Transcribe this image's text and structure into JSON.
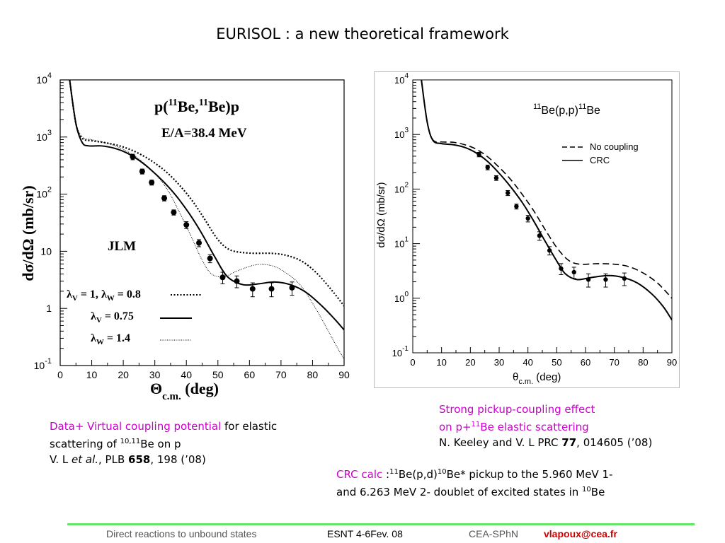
{
  "slide": {
    "title": "EURISOL : a new theoretical framework"
  },
  "chart_data": [
    {
      "type": "line",
      "title": "p(11Be,11Be)p",
      "title_parts": {
        "p_open": "p(",
        "mass1": "11",
        "be1": "Be,",
        "mass2": "11",
        "be2": "Be)p"
      },
      "subtitle": "E/A=38.4 MeV",
      "annotation": "JLM",
      "xlabel": "Θc.m. (deg)",
      "xlabel_parts": {
        "sym": "Θ",
        "sub": "c.m.",
        "rest": " (deg)"
      },
      "ylabel": "dσ/dΩ (mb/sr)",
      "xlim": [
        0,
        90
      ],
      "ylim": [
        0.1,
        10000
      ],
      "yscale": "log",
      "grid": false,
      "x_ticks": [
        "0",
        "10",
        "20",
        "30",
        "40",
        "50",
        "60",
        "70",
        "80",
        "90"
      ],
      "y_ticks": [
        {
          "base": "10",
          "exp": "4"
        },
        {
          "base": "10",
          "exp": "3"
        },
        {
          "base": "10",
          "exp": "2"
        },
        {
          "base": "10",
          "exp": ""
        },
        {
          "base": "1",
          "exp": ""
        },
        {
          "base": "10",
          "exp": "-1"
        }
      ],
      "legend": [
        {
          "lam1": "λ",
          "sub1": "V",
          "mid": " = 1, ",
          "lam2": "λ",
          "sub2": "W",
          "end": " = 0.8",
          "style": "dotted-bold"
        },
        {
          "lam1": "λ",
          "sub1": "V",
          "mid": " = 0.75",
          "style": "solid"
        },
        {
          "lam1": "λ",
          "sub1": "W",
          "mid": " = 1.4",
          "style": "dotted-thin"
        }
      ],
      "series": [
        {
          "style": "solid",
          "points": [
            [
              3,
              10000
            ],
            [
              5,
              1700
            ],
            [
              7,
              800
            ],
            [
              9,
              700
            ],
            [
              13,
              700
            ],
            [
              17,
              640
            ],
            [
              21,
              530
            ],
            [
              25,
              390
            ],
            [
              29,
              260
            ],
            [
              33,
              160
            ],
            [
              37,
              90
            ],
            [
              41,
              45
            ],
            [
              45,
              20
            ],
            [
              49,
              8
            ],
            [
              53,
              3.6
            ],
            [
              58,
              2.6
            ],
            [
              63,
              2.7
            ],
            [
              68,
              2.9
            ],
            [
              73,
              2.6
            ],
            [
              78,
              1.9
            ],
            [
              83,
              1.1
            ],
            [
              87,
              0.65
            ],
            [
              90,
              0.42
            ]
          ]
        },
        {
          "style": "dotted-bold",
          "points": [
            [
              3,
              10000
            ],
            [
              5,
              1700
            ],
            [
              7,
              950
            ],
            [
              10,
              860
            ],
            [
              14,
              800
            ],
            [
              18,
              720
            ],
            [
              22,
              610
            ],
            [
              26,
              480
            ],
            [
              30,
              350
            ],
            [
              34,
              235
            ],
            [
              38,
              140
            ],
            [
              42,
              75
            ],
            [
              46,
              35
            ],
            [
              50,
              16
            ],
            [
              54,
              10.5
            ],
            [
              60,
              9.3
            ],
            [
              67,
              9.2
            ],
            [
              72,
              8.4
            ],
            [
              77,
              6.5
            ],
            [
              82,
              3.8
            ],
            [
              87,
              1.8
            ],
            [
              90,
              1.1
            ]
          ]
        },
        {
          "style": "dotted-thin",
          "points": [
            [
              3,
              10000
            ],
            [
              5,
              1800
            ],
            [
              7,
              1000
            ],
            [
              10,
              900
            ],
            [
              14,
              800
            ],
            [
              18,
              680
            ],
            [
              22,
              530
            ],
            [
              26,
              370
            ],
            [
              30,
              230
            ],
            [
              34,
              120
            ],
            [
              38,
              46
            ],
            [
              42,
              16
            ],
            [
              45,
              7
            ],
            [
              48,
              4
            ],
            [
              52,
              3.6
            ],
            [
              56,
              4.5
            ],
            [
              62,
              5.8
            ],
            [
              67,
              5.6
            ],
            [
              71,
              4.4
            ],
            [
              76,
              2.6
            ],
            [
              81,
              1.0
            ],
            [
              85,
              0.4
            ],
            [
              88,
              0.2
            ],
            [
              90,
              0.13
            ]
          ]
        }
      ],
      "data_points": [
        {
          "x": 23,
          "y": 450,
          "err": 50
        },
        {
          "x": 26,
          "y": 250,
          "err": 25
        },
        {
          "x": 29,
          "y": 160,
          "err": 16
        },
        {
          "x": 33,
          "y": 85,
          "err": 9
        },
        {
          "x": 36,
          "y": 48,
          "err": 5
        },
        {
          "x": 40,
          "y": 29,
          "err": 4
        },
        {
          "x": 44,
          "y": 14,
          "err": 2
        },
        {
          "x": 47.5,
          "y": 7.5,
          "err": 1.2
        },
        {
          "x": 51.5,
          "y": 3.5,
          "err": 0.8
        },
        {
          "x": 56,
          "y": 3.0,
          "err": 0.7
        },
        {
          "x": 61,
          "y": 2.2,
          "err": 0.6
        },
        {
          "x": 67,
          "y": 2.2,
          "err": 0.6
        },
        {
          "x": 73.5,
          "y": 2.3,
          "err": 0.6
        }
      ]
    },
    {
      "type": "line",
      "title": "11Be(p,p)11Be",
      "title_parts": {
        "mass1": "11",
        "mid": "Be(p,p)",
        "mass2": "11",
        "end": "Be"
      },
      "xlabel": "θc.m. (deg)",
      "xlabel_parts": {
        "sym": "θ",
        "sub": "c.m.",
        "rest": " (deg)"
      },
      "ylabel": "dσ/dΩ (mb/sr)",
      "xlim": [
        0,
        90
      ],
      "ylim": [
        0.1,
        10000
      ],
      "yscale": "log",
      "grid": false,
      "legend_position": "top-right",
      "x_ticks": [
        "0",
        "10",
        "20",
        "30",
        "40",
        "50",
        "60",
        "70",
        "80",
        "90"
      ],
      "y_ticks": [
        {
          "base": "10",
          "exp": "4"
        },
        {
          "base": "10",
          "exp": "3"
        },
        {
          "base": "10",
          "exp": "2"
        },
        {
          "base": "10",
          "exp": "1"
        },
        {
          "base": "10",
          "exp": "0"
        },
        {
          "base": "10",
          "exp": "-1"
        }
      ],
      "legend": [
        {
          "label": "No coupling",
          "style": "dashed"
        },
        {
          "label": "CRC",
          "style": "solid"
        }
      ],
      "series": [
        {
          "name": "No coupling",
          "style": "dashed",
          "points": [
            [
              3,
              10000
            ],
            [
              5,
              1700
            ],
            [
              7,
              800
            ],
            [
              10,
              730
            ],
            [
              14,
              720
            ],
            [
              18,
              650
            ],
            [
              22,
              540
            ],
            [
              26,
              390
            ],
            [
              30,
              250
            ],
            [
              34,
              150
            ],
            [
              38,
              80
            ],
            [
              42,
              40
            ],
            [
              46,
              18
            ],
            [
              50,
              8.5
            ],
            [
              54,
              5
            ],
            [
              58,
              4.2
            ],
            [
              64,
              4.3
            ],
            [
              70,
              4.2
            ],
            [
              75,
              3.8
            ],
            [
              80,
              2.9
            ],
            [
              85,
              1.9
            ],
            [
              90,
              1.0
            ]
          ]
        },
        {
          "name": "CRC",
          "style": "solid",
          "points": [
            [
              3,
              10000
            ],
            [
              5,
              1700
            ],
            [
              7,
              780
            ],
            [
              10,
              680
            ],
            [
              14,
              650
            ],
            [
              18,
              580
            ],
            [
              22,
              460
            ],
            [
              26,
              320
            ],
            [
              30,
              195
            ],
            [
              34,
              110
            ],
            [
              38,
              57
            ],
            [
              42,
              26
            ],
            [
              46,
              11
            ],
            [
              50,
              4.8
            ],
            [
              53,
              2.8
            ],
            [
              57,
              2.2
            ],
            [
              62,
              2.4
            ],
            [
              68,
              2.6
            ],
            [
              73,
              2.4
            ],
            [
              78,
              1.9
            ],
            [
              83,
              1.2
            ],
            [
              87,
              0.7
            ],
            [
              90,
              0.4
            ]
          ]
        }
      ],
      "data_points": [
        {
          "x": 23,
          "y": 430,
          "err": 40
        },
        {
          "x": 26,
          "y": 250,
          "err": 25
        },
        {
          "x": 29,
          "y": 160,
          "err": 16
        },
        {
          "x": 33,
          "y": 85,
          "err": 9
        },
        {
          "x": 36,
          "y": 48,
          "err": 5
        },
        {
          "x": 40,
          "y": 29,
          "err": 4
        },
        {
          "x": 44,
          "y": 14,
          "err": 2.5
        },
        {
          "x": 47.5,
          "y": 7.5,
          "err": 1.3
        },
        {
          "x": 51.5,
          "y": 3.5,
          "err": 0.8
        },
        {
          "x": 56,
          "y": 3.0,
          "err": 0.7
        },
        {
          "x": 61,
          "y": 2.2,
          "err": 0.6
        },
        {
          "x": 67,
          "y": 2.2,
          "err": 0.6
        },
        {
          "x": 73.5,
          "y": 2.3,
          "err": 0.6
        }
      ]
    }
  ],
  "captions": {
    "left": {
      "highlight": "Data+ Virtual coupling potential",
      "text1": " for elastic",
      "text2": "scattering of ",
      "sup": "10,11",
      "text3": "Be on p",
      "ref_a": "V. L ",
      "ref_etal": "et al.",
      "ref_b": ", PLB  ",
      "ref_vol": "658",
      "ref_c": ", 198 (’08)"
    },
    "right_top": {
      "line1": "Strong pickup-coupling effect",
      "line2a": "on p+",
      "line2sup": "11",
      "line2b": "Be   elastic scattering",
      "ref_a": "N. Keeley and V. L PRC ",
      "ref_vol": "77",
      "ref_b": ", 014605 (’08)"
    },
    "right_bottom": {
      "highlight": "CRC calc",
      "t1": " :",
      "s1": "11",
      "t2": "Be(p,d)",
      "s2": "10",
      "t3": "Be* pickup to  the 5.960 MeV 1-",
      "line2a": "and 6.263 MeV 2- doublet of excited states in ",
      "s3": "10",
      "line2b": "Be"
    }
  },
  "footer": {
    "left": "Direct reactions to unbound states",
    "mid": "ESNT 4-6Fev. 08",
    "org": "CEA-SPhN",
    "email": "vlapoux@cea.fr"
  },
  "colors": {
    "highlight": "#cc00cc",
    "footer_rule": "#66e666",
    "email": "#d00000"
  }
}
